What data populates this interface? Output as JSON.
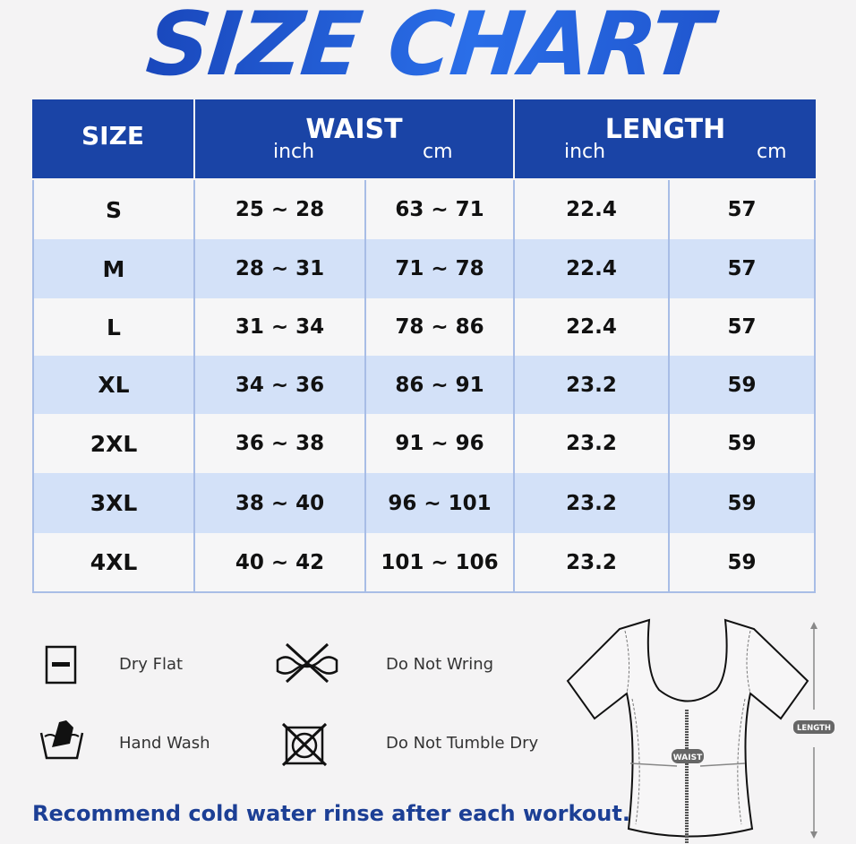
{
  "title": "SIZE CHART",
  "colors": {
    "header": "#1a44a6",
    "stripe": "#d3e1f8",
    "title": "#1545b8"
  },
  "table": {
    "headers": {
      "size": "SIZE",
      "waist": "WAIST",
      "length": "LENGTH",
      "inch": "inch",
      "cm": "cm"
    },
    "rows": [
      [
        "S",
        "25 ~ 28",
        "63 ~ 71",
        "22.4",
        "57"
      ],
      [
        "M",
        "28 ~ 31",
        "71 ~ 78",
        "22.4",
        "57"
      ],
      [
        "L",
        "31 ~ 34",
        "78 ~ 86",
        "22.4",
        "57"
      ],
      [
        "XL",
        "34 ~ 36",
        "86 ~ 91",
        "23.2",
        "59"
      ],
      [
        "2XL",
        "36 ~ 38",
        "91 ~ 96",
        "23.2",
        "59"
      ],
      [
        "3XL",
        "38 ~ 40",
        "96 ~ 101",
        "23.2",
        "59"
      ],
      [
        "4XL",
        "40 ~ 42",
        "101 ~ 106",
        "23.2",
        "59"
      ]
    ]
  },
  "care": [
    {
      "icon": "dry-flat-icon",
      "label": "Dry Flat"
    },
    {
      "icon": "do-not-wring-icon",
      "label": "Do Not Wring"
    },
    {
      "icon": "hand-wash-icon",
      "label": "Hand Wash"
    },
    {
      "icon": "do-not-tumble-dry-icon",
      "label": "Do Not Tumble Dry"
    }
  ],
  "diagram": {
    "waist_label": "WAIST",
    "length_label": "LENGTH"
  },
  "note": "Recommend cold water rinse after each workout."
}
